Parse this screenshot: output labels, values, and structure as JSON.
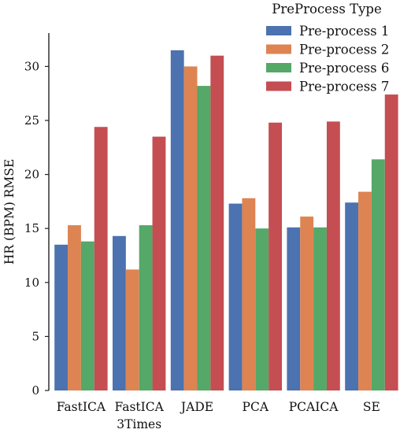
{
  "chart_data": {
    "type": "bar",
    "title": "",
    "xlabel": "",
    "ylabel": "HR (BPM) RMSE",
    "ylim": [
      0,
      33
    ],
    "yticks": [
      0,
      5,
      10,
      15,
      20,
      25,
      30
    ],
    "grid": false,
    "legend": {
      "title": "PreProcess Type",
      "position": "top-right"
    },
    "categories": [
      [
        "FastICA"
      ],
      [
        "FastICA",
        "3Times"
      ],
      [
        "JADE"
      ],
      [
        "PCA"
      ],
      [
        "PCAICA"
      ],
      [
        "SE"
      ]
    ],
    "series": [
      {
        "name": "Pre-process 1",
        "color": "#4c72b0",
        "values": [
          13.5,
          14.3,
          31.5,
          17.3,
          15.1,
          17.4
        ]
      },
      {
        "name": "Pre-process 2",
        "color": "#dd8452",
        "values": [
          15.3,
          11.2,
          30.0,
          17.8,
          16.1,
          18.4
        ]
      },
      {
        "name": "Pre-process 6",
        "color": "#55a868",
        "values": [
          13.8,
          15.3,
          28.2,
          15.0,
          15.1,
          21.4
        ]
      },
      {
        "name": "Pre-process 7",
        "color": "#c44e52",
        "values": [
          24.4,
          23.5,
          31.0,
          24.8,
          24.9,
          27.4
        ]
      }
    ]
  }
}
